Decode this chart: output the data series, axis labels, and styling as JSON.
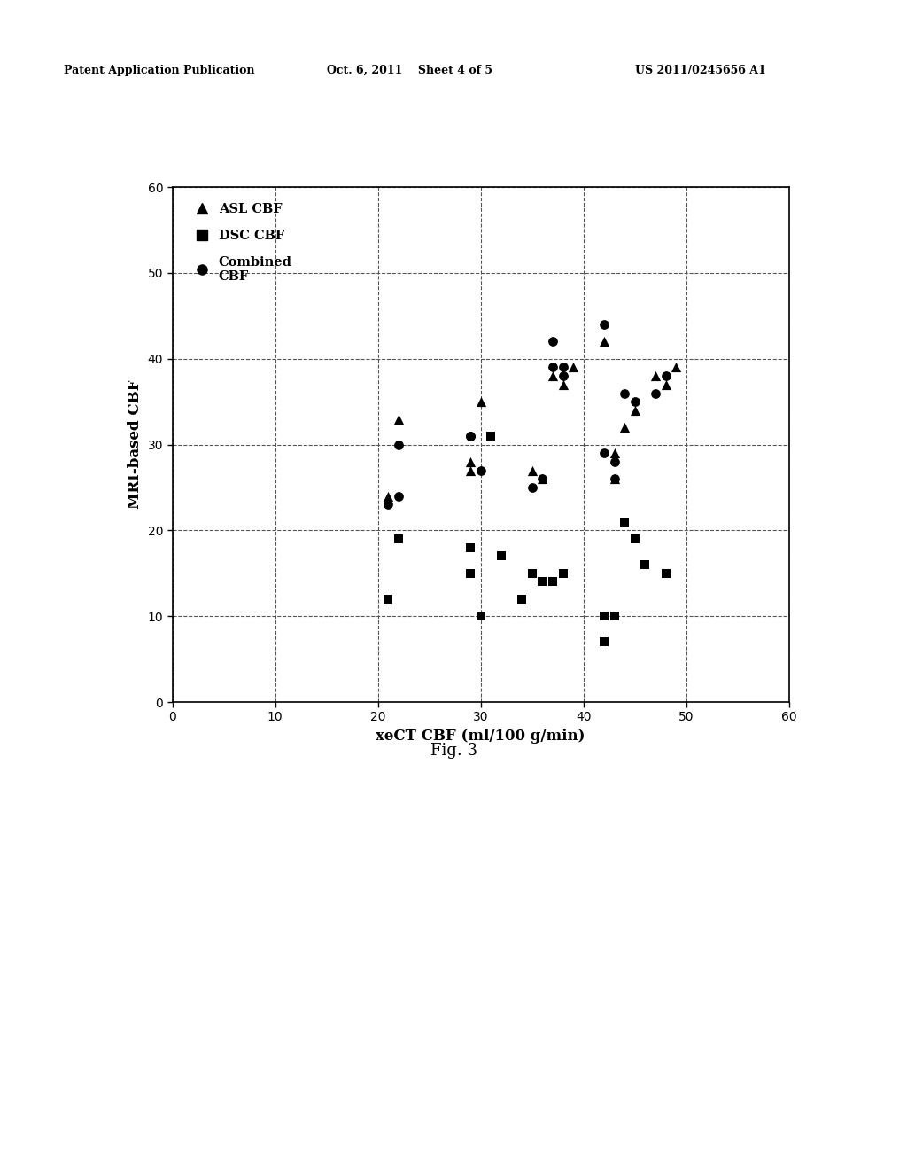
{
  "asl_cbf": [
    [
      21,
      24
    ],
    [
      22,
      33
    ],
    [
      29,
      27
    ],
    [
      29,
      28
    ],
    [
      30,
      35
    ],
    [
      35,
      27
    ],
    [
      36,
      26
    ],
    [
      37,
      38
    ],
    [
      38,
      37
    ],
    [
      39,
      39
    ],
    [
      42,
      42
    ],
    [
      43,
      29
    ],
    [
      43,
      26
    ],
    [
      44,
      32
    ],
    [
      45,
      34
    ],
    [
      47,
      38
    ],
    [
      48,
      37
    ],
    [
      49,
      39
    ]
  ],
  "dsc_cbf": [
    [
      21,
      12
    ],
    [
      22,
      19
    ],
    [
      29,
      18
    ],
    [
      29,
      15
    ],
    [
      30,
      10
    ],
    [
      31,
      31
    ],
    [
      32,
      17
    ],
    [
      34,
      12
    ],
    [
      35,
      15
    ],
    [
      36,
      14
    ],
    [
      37,
      14
    ],
    [
      38,
      15
    ],
    [
      42,
      7
    ],
    [
      42,
      10
    ],
    [
      43,
      10
    ],
    [
      44,
      21
    ],
    [
      45,
      19
    ],
    [
      46,
      16
    ],
    [
      48,
      15
    ]
  ],
  "combined_cbf": [
    [
      21,
      23
    ],
    [
      22,
      24
    ],
    [
      22,
      30
    ],
    [
      29,
      31
    ],
    [
      29,
      31
    ],
    [
      30,
      27
    ],
    [
      35,
      25
    ],
    [
      36,
      26
    ],
    [
      37,
      39
    ],
    [
      37,
      42
    ],
    [
      38,
      39
    ],
    [
      38,
      38
    ],
    [
      42,
      44
    ],
    [
      42,
      29
    ],
    [
      43,
      28
    ],
    [
      43,
      26
    ],
    [
      44,
      36
    ],
    [
      45,
      35
    ],
    [
      47,
      36
    ],
    [
      48,
      38
    ]
  ],
  "xlabel": "xeCT CBF (ml/100 g/min)",
  "ylabel": "MRI-based CBF",
  "xlim": [
    0,
    60
  ],
  "ylim": [
    0,
    60
  ],
  "xticks": [
    0,
    10,
    20,
    30,
    40,
    50,
    60
  ],
  "yticks": [
    0,
    10,
    20,
    30,
    40,
    50,
    60
  ],
  "marker_color": "#000000",
  "fig_caption": "Fig. 3",
  "header_left": "Patent Application Publication",
  "header_center": "Oct. 6, 2011    Sheet 4 of 5",
  "header_right": "US 2011/0245656 A1",
  "background_color": "#ffffff",
  "grid_color": "#555555",
  "legend_labels": [
    "ASL CBF",
    "DSC CBF",
    "Combined\nCBF"
  ]
}
